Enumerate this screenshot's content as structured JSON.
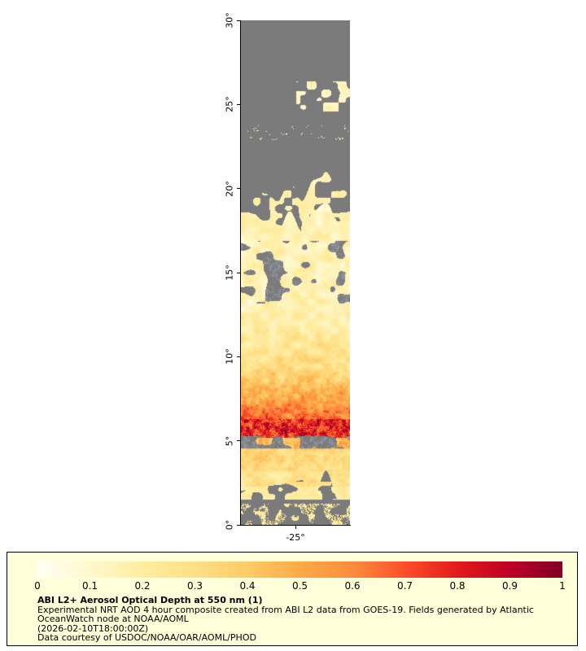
{
  "map": {
    "lat_range": [
      0,
      30
    ],
    "no_data_color": "#7b7b7b",
    "cloud_color": "#8d95a1",
    "y_axis": {
      "ticks": [
        {
          "label": "30°",
          "lat": 30
        },
        {
          "label": "25°",
          "lat": 25
        },
        {
          "label": "20°",
          "lat": 20
        },
        {
          "label": "15°",
          "lat": 15
        },
        {
          "label": "10°",
          "lat": 10
        },
        {
          "label": "5°",
          "lat": 5
        },
        {
          "label": "0°",
          "lat": 0
        }
      ]
    },
    "x_axis": {
      "ticks": [
        {
          "label": "-25°",
          "frac": 0.5
        }
      ]
    }
  },
  "legend": {
    "background": "#ffffd9",
    "title": "ABI L2+ Aerosol Optical Depth at 550 nm (1)",
    "description": "Experimental NRT AOD 4 hour composite created from ABI L2 data from GOES-19. Fields generated by Atlantic OceanWatch node at NOAA/AOML",
    "timestamp": "(2026-02-10T18:00:00Z)",
    "credit": "Data courtesy of USDOC/NOAA/OAR/AOML/PHOD",
    "colorbar": {
      "tick_labels": [
        "0",
        "0.1",
        "0.2",
        "0.3",
        "0.4",
        "0.5",
        "0.6",
        "0.7",
        "0.8",
        "0.9",
        "1"
      ],
      "stops": [
        "#fffff4",
        "#fff8cd",
        "#ffeda0",
        "#fee087",
        "#fecb67",
        "#fdaa48",
        "#fd8d3c",
        "#fc4e2a",
        "#e31a1c",
        "#bd0026",
        "#800026"
      ]
    }
  },
  "chart_data": {
    "type": "heatmap",
    "title": "ABI L2+ Aerosol Optical Depth at 550 nm (1)",
    "value_range": [
      0,
      1
    ],
    "colorbar_ticks": [
      0,
      0.1,
      0.2,
      0.3,
      0.4,
      0.5,
      0.6,
      0.7,
      0.8,
      0.9,
      1
    ],
    "latitude_ticks_deg": [
      30,
      25,
      20,
      15,
      10,
      5,
      0
    ],
    "longitude_ticks_deg": [
      -25
    ],
    "legend_position": "bottom"
  }
}
